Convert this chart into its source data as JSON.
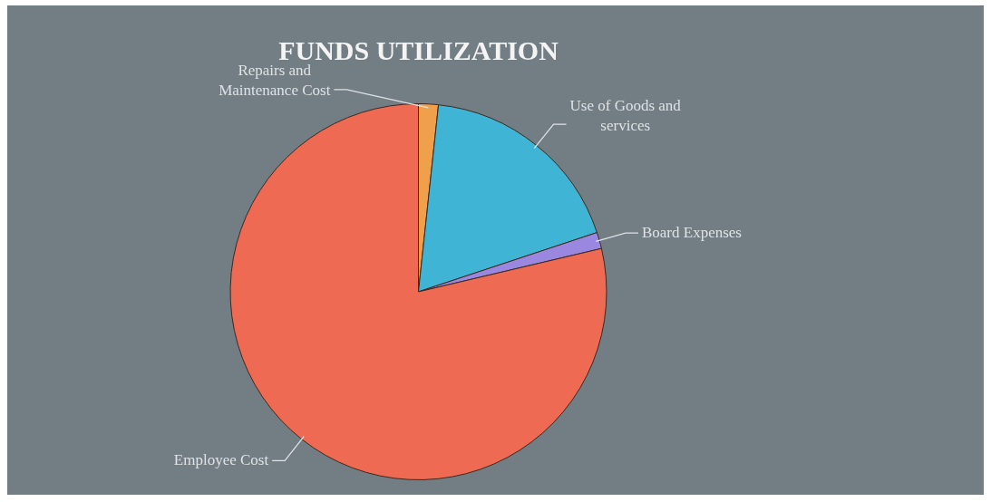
{
  "chart_data": {
    "type": "pie",
    "title": "FUNDS UTILIZATION",
    "categories": [
      "Repairs and Maintenance Cost",
      "Use of Goods and services",
      "Board Expenses",
      "Employee Cost"
    ],
    "values": [
      1.7,
      18.2,
      1.4,
      78.7
    ],
    "colors": [
      "#f0a04a",
      "#3fb4d4",
      "#9a88e0",
      "#ee6a52"
    ]
  }
}
